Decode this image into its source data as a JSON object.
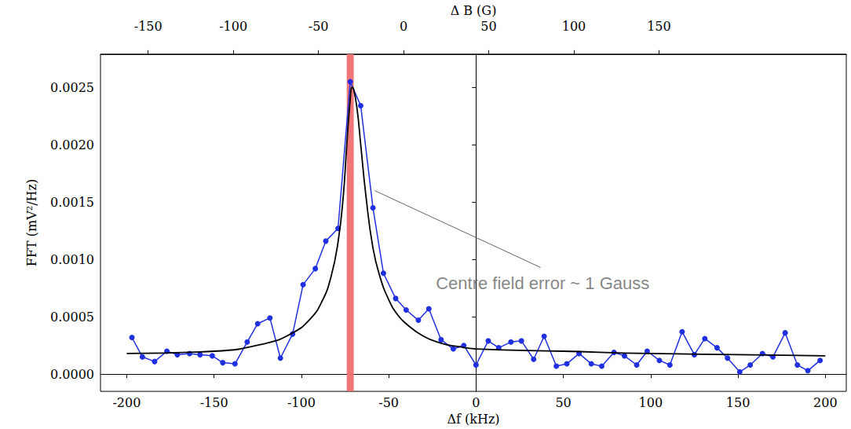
{
  "chart_data": {
    "type": "line",
    "x_label": "Δf (kHz)",
    "x2_label": "Δ B (G)",
    "y_label": "FFT (mV²/Hz)",
    "xlim": [
      -215,
      212
    ],
    "xticks": [
      -200,
      -150,
      -100,
      -50,
      0,
      50,
      100,
      150,
      200
    ],
    "x2lim": [
      -178,
      260
    ],
    "x2ticks": [
      -150,
      -100,
      -50,
      0,
      50,
      100,
      150
    ],
    "ylim": [
      -0.00015,
      0.00279
    ],
    "yticks": [
      {
        "value": 0,
        "label": "0.0000"
      },
      {
        "value": 0.0005,
        "label": "0.0005"
      },
      {
        "value": 0.001,
        "label": "0.0010"
      },
      {
        "value": 0.0015,
        "label": "0.0015"
      },
      {
        "value": 0.002,
        "label": "0.0020"
      },
      {
        "value": 0.0025,
        "label": "0.0025"
      }
    ],
    "grid": false,
    "series": [
      {
        "type": "line",
        "color": "#2030e0",
        "marker": "circle",
        "line_style": "solid",
        "x": [
          -197,
          -191,
          -184,
          -177,
          -171,
          -164,
          -158,
          -151,
          -145,
          -138,
          -131,
          -125,
          -118,
          -112,
          -105,
          -99,
          -92,
          -86,
          -79,
          -72,
          -66,
          -59,
          -53,
          -46,
          -40,
          -33,
          -27,
          -20,
          -13,
          -7,
          0,
          7,
          13,
          20,
          26,
          33,
          39,
          46,
          52,
          59,
          66,
          72,
          79,
          85,
          92,
          98,
          105,
          111,
          118,
          125,
          131,
          138,
          144,
          151,
          157,
          164,
          170,
          177,
          184,
          190,
          197
        ],
        "values": [
          0.00032,
          0.00015,
          0.00011,
          0.0002,
          0.00017,
          0.00018,
          0.00017,
          0.00016,
          0.0001,
          9e-05,
          0.00028,
          0.00044,
          0.00049,
          0.00014,
          0.00035,
          0.00078,
          0.00092,
          0.00116,
          0.00127,
          0.00255,
          0.00234,
          0.00145,
          0.00088,
          0.00066,
          0.00056,
          0.00047,
          0.00057,
          0.0003,
          0.00022,
          0.00025,
          8e-05,
          0.00029,
          0.00023,
          0.00028,
          0.00029,
          0.00013,
          0.00033,
          7e-05,
          9e-05,
          0.00018,
          9e-05,
          7e-05,
          0.00019,
          0.00016,
          8e-05,
          0.0002,
          0.00012,
          8e-05,
          0.00037,
          0.00017,
          0.00031,
          0.00023,
          0.00014,
          2e-05,
          8e-05,
          0.00018,
          0.00015,
          0.00036,
          8e-05,
          3e-05,
          0.00012
        ]
      },
      {
        "type": "line",
        "color": "#000000",
        "marker": "none",
        "line_style": "solid",
        "x": [
          -200,
          -150,
          -120,
          -105,
          -95,
          -88,
          -83,
          -79,
          -76,
          -74,
          -72,
          -71,
          -70,
          -68,
          -66,
          -63,
          -59,
          -55,
          -50,
          -45,
          -40,
          -30,
          -20,
          -10,
          0,
          50,
          100,
          150,
          200
        ],
        "values": [
          0.00018,
          0.0002,
          0.00027,
          0.00036,
          0.00048,
          0.00064,
          0.00085,
          0.00115,
          0.00155,
          0.002,
          0.0024,
          0.0025,
          0.00248,
          0.0023,
          0.002,
          0.00155,
          0.0011,
          0.00085,
          0.00065,
          0.00052,
          0.00044,
          0.00033,
          0.00027,
          0.00024,
          0.00022,
          0.0002,
          0.00018,
          0.00017,
          0.00016
        ]
      }
    ],
    "band": {
      "x": [
        -74,
        -70
      ],
      "color": "#f07070"
    },
    "annotation": {
      "text": "Centre field error ~ 1 Gauss",
      "x": -23,
      "y": 0.00079,
      "line_from": [
        -58,
        0.0016
      ],
      "line_to": [
        37,
        0.00093
      ],
      "color": "#666666"
    }
  }
}
